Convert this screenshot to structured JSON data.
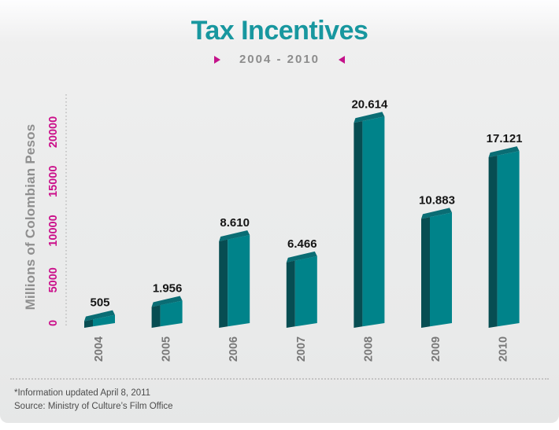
{
  "title": "Tax Incentives",
  "subtitle": "2004 - 2010",
  "footer": {
    "line1": "*Information updated April 8, 2011",
    "line2": "Source: Ministry of Culture’s Film Office"
  },
  "colors": {
    "title_teal": "#18979f",
    "magenta": "#c4128a",
    "bar_front": "#00838a",
    "bar_side": "#074d52",
    "bar_top": "#0a6d74",
    "value_label": "#151515",
    "year_label": "#787878",
    "tick_label": "#cb0f8a",
    "axis_line": "#b8b8b8",
    "subtitle_gray": "#8c8c8c",
    "footer_text": "#4c4c4c"
  },
  "chart_data": {
    "type": "bar",
    "title": "Tax Incentives",
    "subtitle": "2004 - 2010",
    "categories": [
      "2004",
      "2005",
      "2006",
      "2007",
      "2008",
      "2009",
      "2010"
    ],
    "values": [
      505,
      1956,
      8610,
      6466,
      20614,
      10883,
      17121
    ],
    "value_labels": [
      "505",
      "1.956",
      "8.610",
      "6.466",
      "20.614",
      "10.883",
      "17.121"
    ],
    "xlabel": "",
    "ylabel": "Millions of Colombian Pesos",
    "yticks": [
      0,
      5000,
      10000,
      15000,
      20000
    ],
    "ylim": [
      0,
      22000
    ],
    "grid": false,
    "legend": false,
    "style": "3d-oblique-bars"
  }
}
